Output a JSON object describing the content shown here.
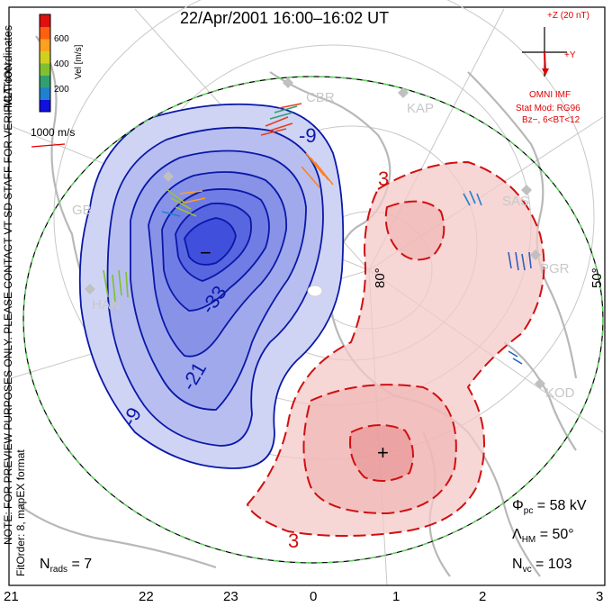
{
  "title": "22/Apr/2001  16:00–16:02  UT",
  "side_notes": {
    "mlt": "MLT coordinates",
    "preview": "NOTE: FOR PREVIEW PURPOSES ONLY. PLEASE CONTACT VT-SD STAFF FOR VERIFICATION.",
    "fit": "FitOrder: 8,  mapEX format"
  },
  "colorbar": {
    "label": "Vel [m/s]",
    "ticks": [
      "600",
      "400",
      "200"
    ],
    "colors": [
      "#1010e0",
      "#2080d0",
      "#30a070",
      "#80c030",
      "#d0d020",
      "#ffa020",
      "#ff6010",
      "#e01010"
    ]
  },
  "vector_scale": "1000 m/s",
  "imf": {
    "z_label": "+Z (20 nT)",
    "y_label": "+Y",
    "source": "OMNI IMF",
    "model": "Stat Mod: RG96",
    "condition": "Bz−, 6<BT<12"
  },
  "stations": [
    "CBR",
    "KAP",
    "SAS",
    "PGR",
    "KOD",
    "HAN",
    "GB"
  ],
  "latitude_labels": [
    "80°",
    "50°"
  ],
  "contour_labels": [
    "-9",
    "-21",
    "-33",
    "-9",
    "3",
    "3"
  ],
  "extrema": {
    "min": "−",
    "max": "+"
  },
  "stats": {
    "phi_symbol": "Φ",
    "phi_sub": "pc",
    "phi_value": "= 58 kV",
    "lambda_symbol": "Λ",
    "lambda_sub": "HM",
    "lambda_value": "= 50°",
    "nvc_symbol": "N",
    "nvc_sub": "vc",
    "nvc_value": "= 103",
    "nrads_symbol": "N",
    "nrads_sub": "rads",
    "nrads_value": "= 7"
  },
  "mlt_labels": [
    "21",
    "22",
    "23",
    "0",
    "1",
    "2",
    "3"
  ],
  "colors": {
    "negative": "#0a18a8",
    "negative_fill": "#4050e0",
    "positive": "#d01010",
    "positive_fill": "#f4c8c8",
    "boundary": "#60d060",
    "land": "#b8b8b8"
  }
}
